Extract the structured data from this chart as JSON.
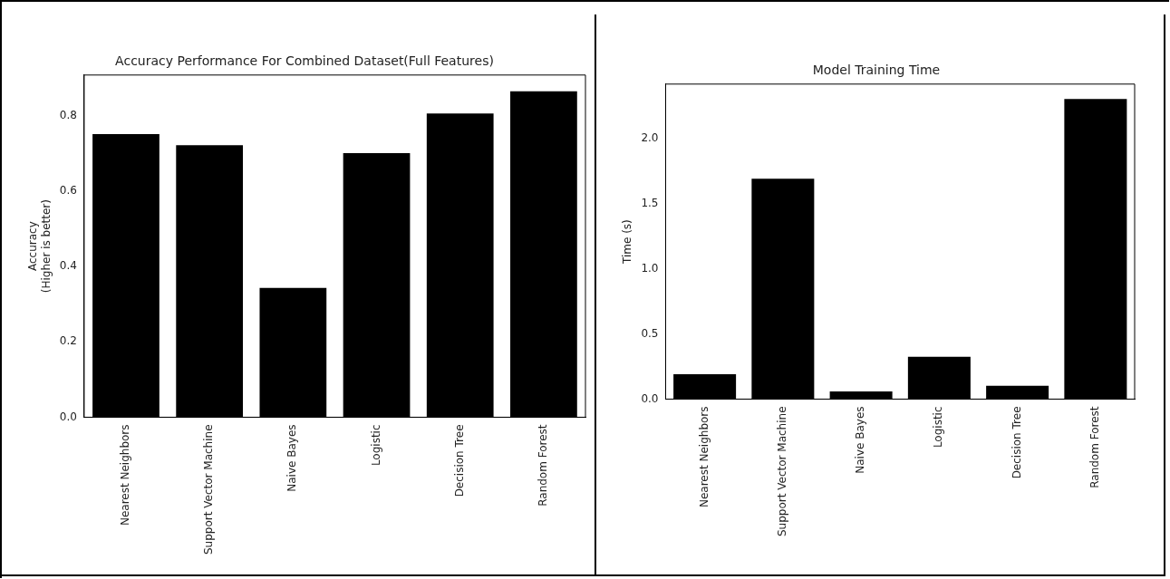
{
  "chart_data": [
    {
      "type": "bar",
      "title": "Accuracy Performance For Combined Dataset(Full Features)",
      "ylabel": "Accuracy\n(Higher is better)",
      "categories": [
        "Nearest Neighbors",
        "Support Vector Machine",
        "Naive Bayes",
        "Logistic",
        "Decision Tree",
        "Random Forest"
      ],
      "values": [
        0.751,
        0.722,
        0.343,
        0.701,
        0.806,
        0.865
      ],
      "color": "#000000",
      "ylim": [
        0,
        0.908
      ],
      "yticks": [
        {
          "value": 0,
          "label": "0.0"
        },
        0.2,
        0.4,
        0.6,
        0.8
      ]
    },
    {
      "type": "bar",
      "title": "Model Training Time",
      "ylabel": "Time (s)",
      "categories": [
        "Nearest Neighbors",
        "Support Vector Machine",
        "Naive Bayes",
        "Logistic",
        "Decision Tree",
        "Random Forest"
      ],
      "values": [
        0.19,
        1.69,
        0.058,
        0.324,
        0.103,
        2.3
      ],
      "color": "#000000",
      "ylim": [
        0,
        2.415
      ],
      "yticks": [
        {
          "value": 0,
          "label": "0.0"
        },
        0.5,
        {
          "value": 1,
          "label": "1.0"
        },
        1.5,
        {
          "value": 2,
          "label": "2.0"
        }
      ]
    }
  ]
}
